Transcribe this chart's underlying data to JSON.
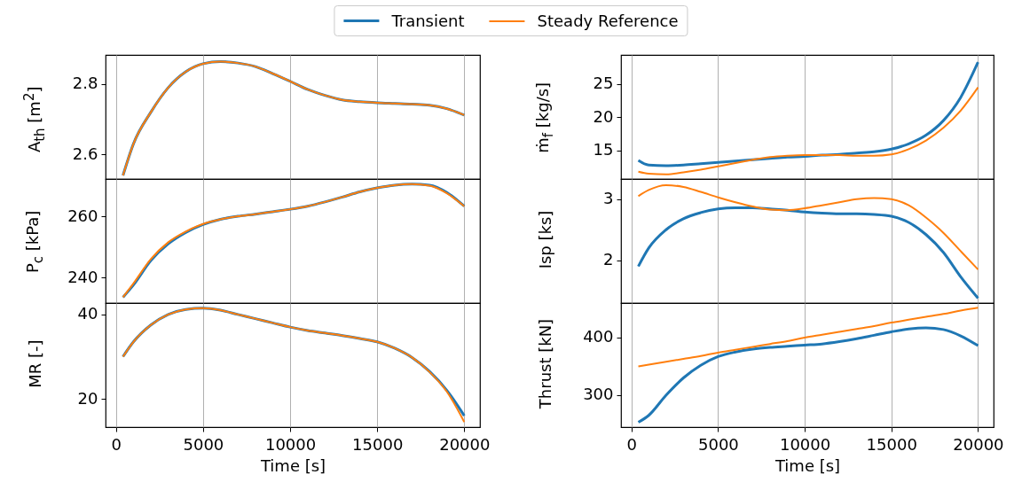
{
  "chart_data": [
    {
      "type": "line",
      "ylabel": "A$_{th}$ [m$^{2}$]",
      "legend": "top",
      "grid": "x",
      "tick_labels": "y",
      "xlim": [
        -600,
        20900
      ],
      "xticks": [
        0,
        5000,
        10000,
        15000,
        20000
      ],
      "ylim": [
        2.53,
        2.883
      ],
      "yticks": [
        2.6,
        2.8
      ],
      "x": [
        400,
        1000,
        2000,
        3000,
        4000,
        5000,
        6000,
        7000,
        8000,
        9000,
        10000,
        11000,
        12000,
        13000,
        14000,
        15000,
        16000,
        17000,
        18000,
        19000,
        20000
      ],
      "series": [
        {
          "name": "Transient",
          "color": "#1f77b4",
          "values": [
            2.54,
            2.63,
            2.72,
            2.79,
            2.835,
            2.858,
            2.864,
            2.86,
            2.85,
            2.83,
            2.808,
            2.785,
            2.768,
            2.755,
            2.75,
            2.747,
            2.745,
            2.743,
            2.74,
            2.73,
            2.712
          ]
        },
        {
          "name": "Steady Reference",
          "color": "#ff7f0e",
          "values": [
            2.54,
            2.63,
            2.72,
            2.79,
            2.835,
            2.858,
            2.864,
            2.86,
            2.85,
            2.83,
            2.808,
            2.785,
            2.768,
            2.755,
            2.75,
            2.747,
            2.745,
            2.743,
            2.74,
            2.73,
            2.712
          ]
        }
      ]
    },
    {
      "type": "line",
      "ylabel": "ṁ$_{f}$ [kg/s]",
      "grid": "x",
      "tick_labels": "y",
      "xlim": [
        -600,
        20900
      ],
      "xticks": [
        0,
        5000,
        10000,
        15000,
        20000
      ],
      "ylim": [
        10.7,
        29.4
      ],
      "yticks": [
        15,
        20,
        25
      ],
      "x": [
        400,
        1000,
        2000,
        3000,
        4000,
        5000,
        6000,
        7000,
        8000,
        9000,
        10000,
        11000,
        12000,
        13000,
        14000,
        15000,
        16000,
        17000,
        18000,
        19000,
        20000
      ],
      "series": [
        {
          "color": "#1f77b4",
          "values": [
            13.5,
            12.8,
            12.7,
            12.8,
            13.0,
            13.2,
            13.4,
            13.6,
            13.8,
            14.0,
            14.1,
            14.3,
            14.4,
            14.6,
            14.8,
            15.2,
            16.0,
            17.3,
            19.5,
            23,
            28.3
          ]
        },
        {
          "color": "#ff7f0e",
          "values": [
            11.8,
            11.5,
            11.4,
            11.7,
            12.1,
            12.6,
            13.1,
            13.6,
            14.0,
            14.2,
            14.3,
            14.3,
            14.3,
            14.2,
            14.2,
            14.4,
            15.2,
            16.5,
            18.4,
            21.0,
            24.5
          ]
        }
      ]
    },
    {
      "type": "line",
      "ylabel": "P$_{c}$ [kPa]",
      "grid": "x",
      "tick_labels": "y",
      "xlim": [
        -600,
        20900
      ],
      "xticks": [
        0,
        5000,
        10000,
        15000,
        20000
      ],
      "ylim": [
        231.6,
        272.2
      ],
      "yticks": [
        240,
        260
      ],
      "x": [
        400,
        1000,
        2000,
        3000,
        4000,
        5000,
        6000,
        7000,
        8000,
        9000,
        10000,
        11000,
        12000,
        13000,
        14000,
        15000,
        16000,
        17000,
        18000,
        19000,
        20000
      ],
      "series": [
        {
          "color": "#1f77b4",
          "values": [
            233.5,
            237.5,
            245.5,
            251,
            254.7,
            257.3,
            259,
            260,
            260.7,
            261.5,
            262.3,
            263.3,
            264.7,
            266.3,
            268,
            269.3,
            270.2,
            270.5,
            270.2,
            267.8,
            263.3
          ]
        },
        {
          "color": "#ff7f0e",
          "values": [
            233.5,
            238,
            246,
            251.5,
            255,
            257.5,
            259,
            260,
            260.7,
            261.5,
            262.3,
            263.3,
            264.7,
            266.3,
            268,
            269.3,
            270.2,
            270.5,
            270,
            267.5,
            263.3
          ]
        }
      ]
    },
    {
      "type": "line",
      "ylabel": "Isp [ks]",
      "grid": "x",
      "tick_labels": "y",
      "xlim": [
        -600,
        20900
      ],
      "xticks": [
        0,
        5000,
        10000,
        15000,
        20000
      ],
      "ylim": [
        1.3,
        3.33
      ],
      "yticks": [
        2,
        3
      ],
      "x": [
        400,
        1000,
        2000,
        3000,
        4000,
        5000,
        6000,
        7000,
        8000,
        9000,
        10000,
        11000,
        12000,
        13000,
        14000,
        15000,
        16000,
        17000,
        18000,
        19000,
        20000
      ],
      "series": [
        {
          "color": "#1f77b4",
          "values": [
            1.9,
            2.2,
            2.5,
            2.68,
            2.78,
            2.84,
            2.86,
            2.86,
            2.84,
            2.82,
            2.79,
            2.77,
            2.76,
            2.76,
            2.75,
            2.72,
            2.62,
            2.42,
            2.13,
            1.73,
            1.38
          ]
        },
        {
          "color": "#ff7f0e",
          "values": [
            3.05,
            3.15,
            3.23,
            3.2,
            3.12,
            3.03,
            2.95,
            2.88,
            2.83,
            2.82,
            2.85,
            2.9,
            2.95,
            3.0,
            3.02,
            3.0,
            2.9,
            2.7,
            2.45,
            2.15,
            1.85
          ]
        }
      ]
    },
    {
      "type": "line",
      "ylabel": "MR [-]",
      "xlabel": "Time [s]",
      "grid": "x",
      "xlim": [
        -600,
        20900
      ],
      "xticks": [
        0,
        5000,
        10000,
        15000,
        20000
      ],
      "ylim": [
        13.3,
        42.7
      ],
      "yticks": [
        20,
        40
      ],
      "x": [
        400,
        1000,
        2000,
        3000,
        4000,
        5000,
        6000,
        7000,
        8000,
        9000,
        10000,
        11000,
        12000,
        13000,
        14000,
        15000,
        16000,
        17000,
        18000,
        19000,
        20000
      ],
      "series": [
        {
          "color": "#1f77b4",
          "values": [
            30,
            33.5,
            37.5,
            40,
            41.2,
            41.5,
            41,
            40,
            39,
            38,
            37,
            36.2,
            35.6,
            35,
            34.3,
            33.5,
            32,
            29.8,
            26.5,
            22,
            16
          ]
        },
        {
          "color": "#ff7f0e",
          "values": [
            30,
            33.5,
            37.5,
            40,
            41.2,
            41.5,
            41,
            40,
            39,
            38,
            37,
            36.2,
            35.6,
            35,
            34.3,
            33.5,
            32,
            29.8,
            26.4,
            21.7,
            14.5
          ]
        }
      ]
    },
    {
      "type": "line",
      "ylabel": "Thrust [kN]",
      "xlabel": "Time [s]",
      "grid": "x",
      "xlim": [
        -600,
        20900
      ],
      "xticks": [
        0,
        5000,
        10000,
        15000,
        20000
      ],
      "ylim": [
        244.6,
        460
      ],
      "yticks": [
        300,
        400
      ],
      "x": [
        400,
        1000,
        2000,
        3000,
        4000,
        5000,
        6000,
        7000,
        8000,
        9000,
        10000,
        11000,
        12000,
        13000,
        14000,
        15000,
        16000,
        17000,
        18000,
        19000,
        20000
      ],
      "series": [
        {
          "color": "#1f77b4",
          "values": [
            253,
            265,
            300,
            330,
            352,
            367,
            375,
            380,
            383,
            385,
            387,
            389,
            393,
            398,
            404,
            410,
            415,
            417,
            414,
            403,
            386
          ]
        },
        {
          "color": "#ff7f0e",
          "values": [
            350,
            353,
            358,
            363,
            368,
            374,
            379,
            384,
            389,
            394,
            400,
            405,
            410,
            415,
            420,
            426,
            431,
            436,
            441,
            447,
            452
          ]
        }
      ]
    }
  ]
}
